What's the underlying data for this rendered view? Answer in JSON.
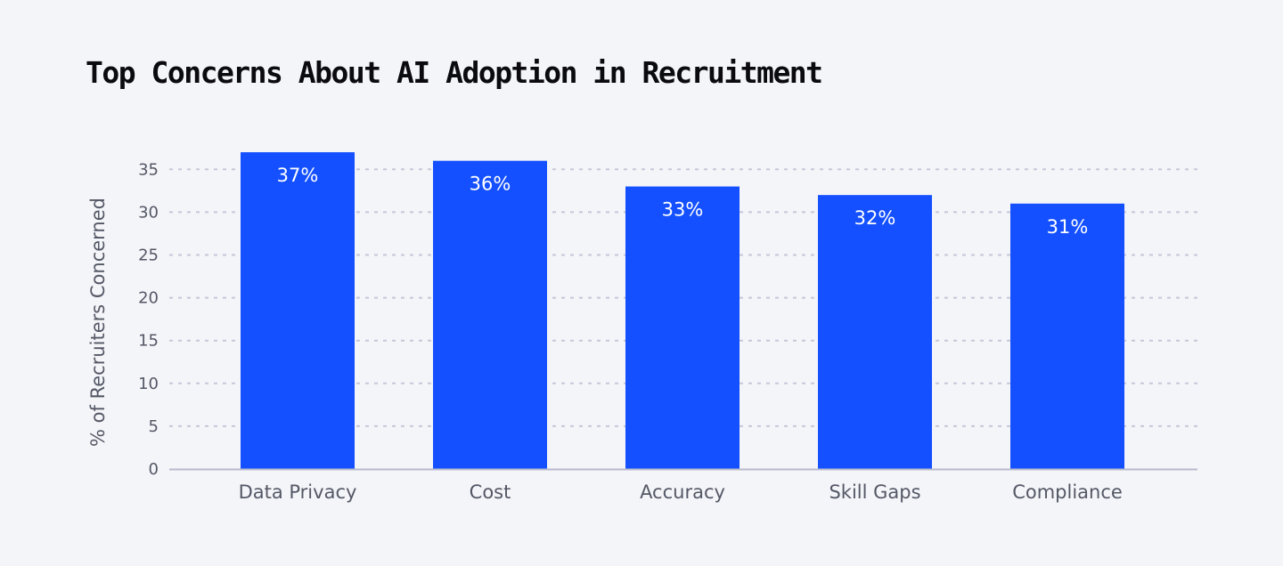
{
  "colors": {
    "background": "#f4f5f9",
    "bar": "#1450ff",
    "grid": "#c5c8d8",
    "axis": "#b7bbcc",
    "text": "#545865",
    "title": "#0b0b0f"
  },
  "chart_data": {
    "type": "bar",
    "title": "Top Concerns About AI Adoption in Recruitment",
    "xlabel": "",
    "ylabel": "% of Recruiters Concerned",
    "categories": [
      "Data Privacy",
      "Cost",
      "Accuracy",
      "Skill Gaps",
      "Compliance"
    ],
    "values": [
      37,
      36,
      33,
      32,
      31
    ],
    "data_labels": [
      "37%",
      "36%",
      "33%",
      "32%",
      "31%"
    ],
    "ylim": [
      0,
      35
    ],
    "yticks": [
      0,
      5,
      10,
      15,
      20,
      25,
      30,
      35
    ],
    "grid": true,
    "grid_style": "dashed",
    "legend": "none"
  }
}
